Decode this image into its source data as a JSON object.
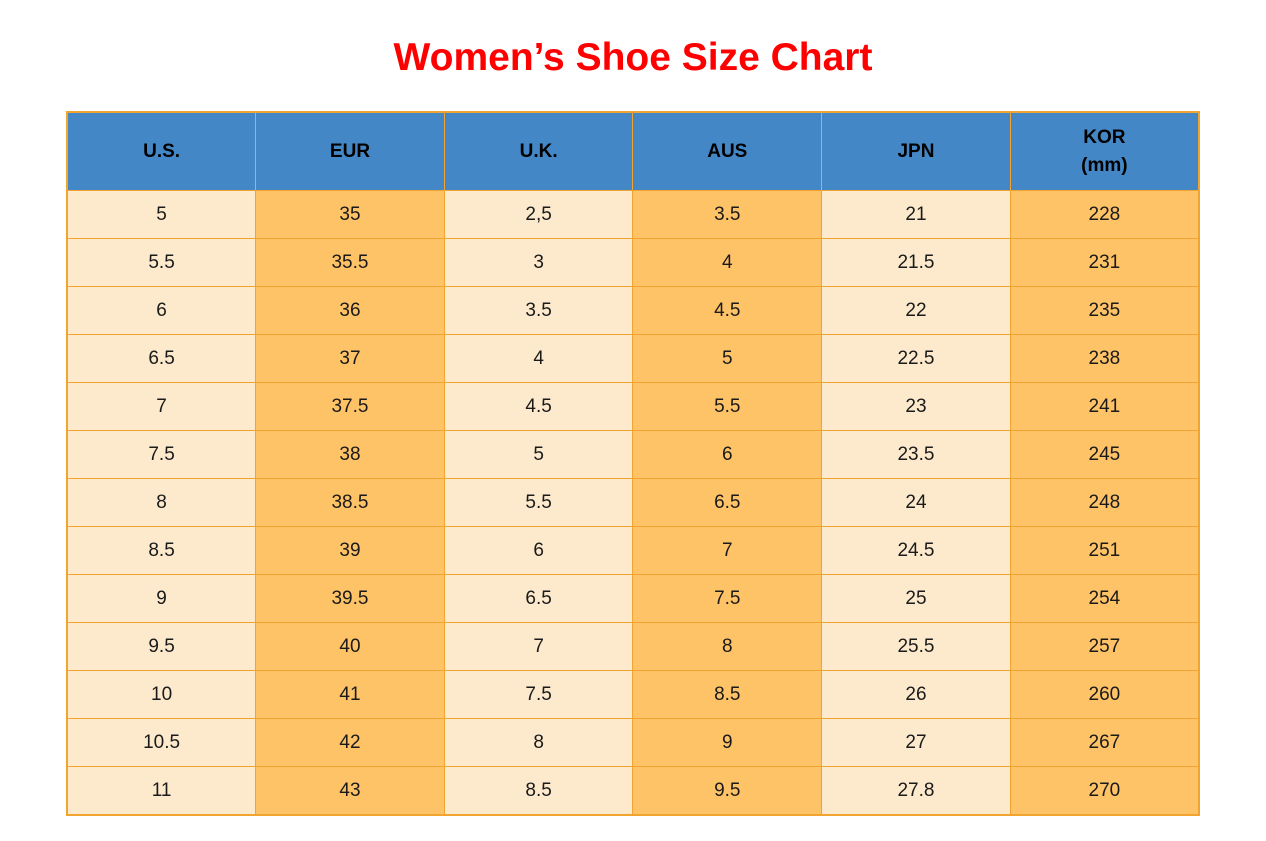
{
  "title": "Women’s Shoe Size Chart",
  "colors": {
    "title_red": "#ff0000",
    "header_blue": "#4487c6",
    "cell_cream": "#fdeacd",
    "cell_orange": "#fec267",
    "border_orange": "#f2a431",
    "text_black": "#1a1a1a"
  },
  "header": {
    "columns": [
      {
        "label": "U.S."
      },
      {
        "label": "EUR"
      },
      {
        "label": "U.K."
      },
      {
        "label": "AUS"
      },
      {
        "label": "JPN"
      },
      {
        "label": "KOR",
        "sublabel": "(mm)"
      }
    ]
  },
  "chart_data": {
    "type": "table",
    "title": "Women’s Shoe Size Chart",
    "columns": [
      "U.S.",
      "EUR",
      "U.K.",
      "AUS",
      "JPN",
      "KOR (mm)"
    ],
    "rows": [
      [
        "5",
        "35",
        "2,5",
        "3.5",
        "21",
        "228"
      ],
      [
        "5.5",
        "35.5",
        "3",
        "4",
        "21.5",
        "231"
      ],
      [
        "6",
        "36",
        "3.5",
        "4.5",
        "22",
        "235"
      ],
      [
        "6.5",
        "37",
        "4",
        "5",
        "22.5",
        "238"
      ],
      [
        "7",
        "37.5",
        "4.5",
        "5.5",
        "23",
        "241"
      ],
      [
        "7.5",
        "38",
        "5",
        "6",
        "23.5",
        "245"
      ],
      [
        "8",
        "38.5",
        "5.5",
        "6.5",
        "24",
        "248"
      ],
      [
        "8.5",
        "39",
        "6",
        "7",
        "24.5",
        "251"
      ],
      [
        "9",
        "39.5",
        "6.5",
        "7.5",
        "25",
        "254"
      ],
      [
        "9.5",
        "40",
        "7",
        "8",
        "25.5",
        "257"
      ],
      [
        "10",
        "41",
        "7.5",
        "8.5",
        "26",
        "260"
      ],
      [
        "10.5",
        "42",
        "8",
        "9",
        "27",
        "267"
      ],
      [
        "11",
        "43",
        "8.5",
        "9.5",
        "27.8",
        "270"
      ]
    ]
  }
}
